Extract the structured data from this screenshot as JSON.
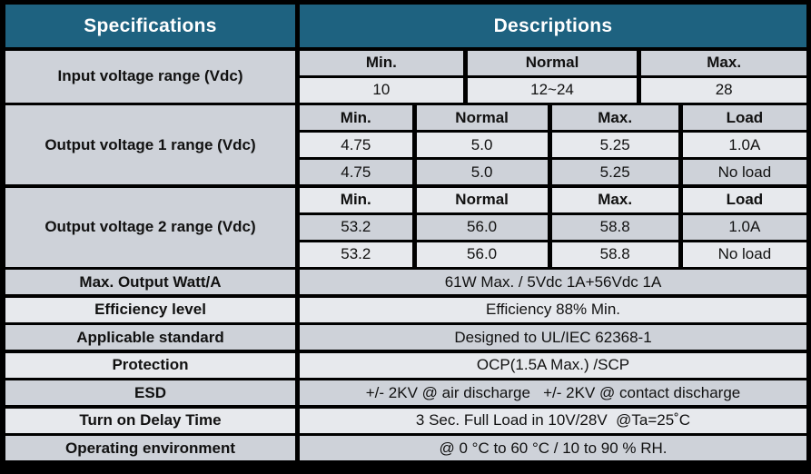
{
  "header": {
    "specifications": "Specifications",
    "descriptions": "Descriptions"
  },
  "colors": {
    "header_teal": "#1e6280",
    "row_gray": "#ced2d9",
    "row_light": "#e7e9ed",
    "gridline_white": "#ffffff",
    "frame_black": "#000000"
  },
  "sections": {
    "input_voltage": {
      "label": "Input voltage range (Vdc)",
      "headers": [
        "Min.",
        "Normal",
        "Max."
      ],
      "values": [
        "10",
        "12~24",
        "28"
      ]
    },
    "output_voltage_1": {
      "label": "Output voltage 1 range (Vdc)",
      "headers": [
        "Min.",
        "Normal",
        "Max.",
        "Load"
      ],
      "rows": [
        [
          "4.75",
          "5.0",
          "5.25",
          "1.0A"
        ],
        [
          "4.75",
          "5.0",
          "5.25",
          "No load"
        ]
      ]
    },
    "output_voltage_2": {
      "label": "Output voltage 2 range (Vdc)",
      "headers": [
        "Min.",
        "Normal",
        "Max.",
        "Load"
      ],
      "rows": [
        [
          "53.2",
          "56.0",
          "58.8",
          "1.0A"
        ],
        [
          "53.2",
          "56.0",
          "58.8",
          "No load"
        ]
      ]
    },
    "simple_rows": [
      {
        "label": "Max. Output Watt/A",
        "value": "61W Max. / 5Vdc 1A+56Vdc 1A"
      },
      {
        "label": "Efficiency level",
        "value": "Efficiency 88% Min."
      },
      {
        "label": "Applicable standard",
        "value": "Designed to UL/IEC 62368-1"
      },
      {
        "label": "Protection",
        "value": "OCP(1.5A Max.) /SCP"
      },
      {
        "label": "ESD",
        "value": "+/- 2KV @ air discharge   +/- 2KV @ contact discharge"
      },
      {
        "label": "Turn on Delay Time",
        "value": "3 Sec. Full Load in 10V/28V  @Ta=25˚C"
      },
      {
        "label": "Operating environment",
        "value": "@ 0 °C to 60 °C / 10 to 90 % RH."
      }
    ]
  }
}
